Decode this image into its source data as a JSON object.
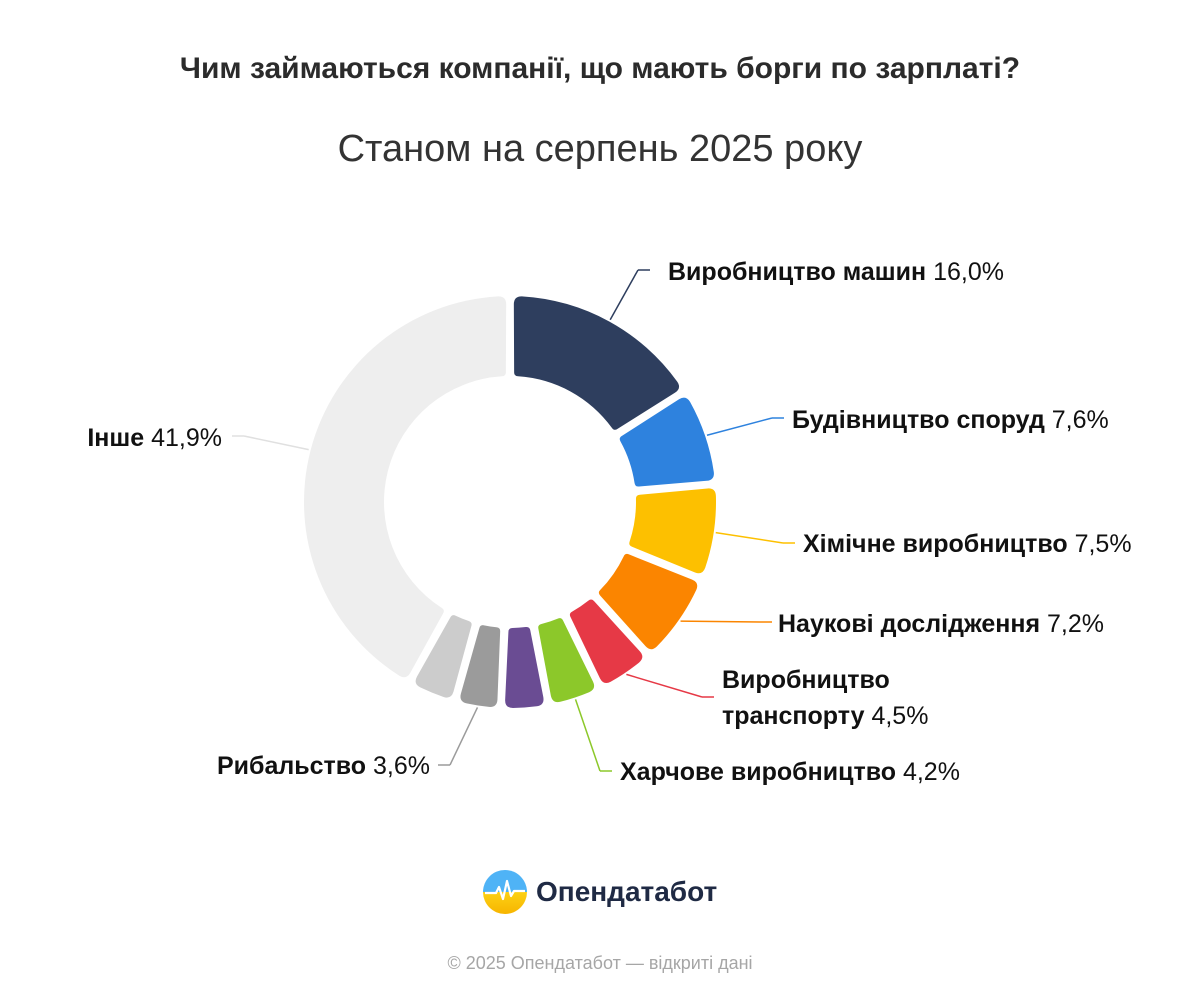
{
  "title": "Чим займаються компанії, що мають борги по зарплаті?",
  "subtitle": "Станом на серпень 2025 року",
  "chart_data": {
    "type": "pie",
    "variant": "donut",
    "slices": [
      {
        "label": "Виробництво машин",
        "value": 16.0,
        "value_text": "16,0%",
        "color": "#2e3e5e"
      },
      {
        "label": "Будівництво споруд",
        "value": 7.6,
        "value_text": "7,6%",
        "color": "#2e82de"
      },
      {
        "label": "Хімічне виробництво",
        "value": 7.5,
        "value_text": "7,5%",
        "color": "#fdc000"
      },
      {
        "label": "Наукові дослідження",
        "value": 7.2,
        "value_text": "7,2%",
        "color": "#fb8500"
      },
      {
        "label": "Виробництво транспорту",
        "value": 4.5,
        "value_text": "4,5%",
        "color": "#e63946"
      },
      {
        "label": "Харчове виробництво",
        "value": 4.2,
        "value_text": "4,2%",
        "color": "#8cc82a"
      },
      {
        "label": "",
        "value": 3.7,
        "value_text": "",
        "color": "#6a4c93"
      },
      {
        "label": "Рибальство",
        "value": 3.6,
        "value_text": "3,6%",
        "color": "#9b9b9b"
      },
      {
        "label": "",
        "value": 3.8,
        "value_text": "",
        "color": "#cccccc"
      },
      {
        "label": "Інше",
        "value": 41.9,
        "value_text": "41,9%",
        "color": "#eeeeee"
      }
    ]
  },
  "logo": {
    "text": "Опендатабот"
  },
  "footer": "© 2025 Опендатабот — відкриті дані"
}
